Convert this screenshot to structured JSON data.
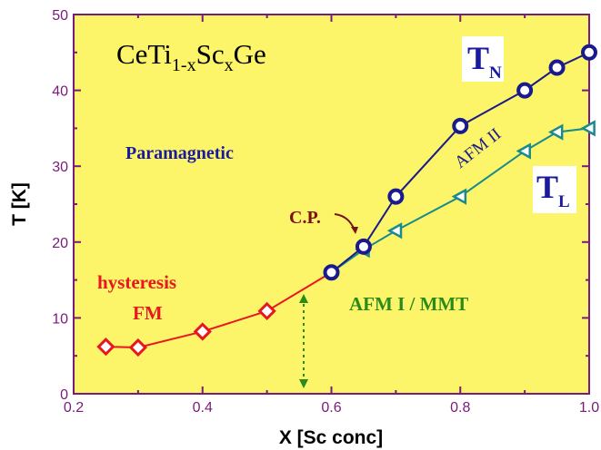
{
  "chart_data": {
    "type": "scatter",
    "title": "",
    "formula": {
      "base": "CeTi",
      "sub1": "1-x",
      "mid": "Sc",
      "sub2": "x",
      "end": "Ge"
    },
    "xlabel": "X [Sc conc]",
    "ylabel": "T [K]",
    "xlim": [
      0.2,
      1.0
    ],
    "ylim": [
      0,
      50
    ],
    "xticks": [
      "0.2",
      "0.4",
      "0.6",
      "0.8",
      "1.0"
    ],
    "yticks": [
      "0",
      "10",
      "20",
      "30",
      "40",
      "50"
    ],
    "grid": false,
    "series": [
      {
        "name": "FM",
        "marker": "diamond",
        "color": "#e8161f",
        "x": [
          0.25,
          0.3,
          0.4,
          0.5
        ],
        "y": [
          6.2,
          6.1,
          8.2,
          10.9
        ]
      },
      {
        "name": "T_N",
        "marker": "circle",
        "color": "#1a1a8c",
        "x": [
          0.6,
          0.65,
          0.7,
          0.8,
          0.9,
          0.95,
          1.0
        ],
        "y": [
          16.0,
          19.4,
          26.0,
          35.3,
          40.0,
          43.0,
          45.0
        ]
      },
      {
        "name": "T_L",
        "marker": "triangle-left",
        "color": "#1a8a8a",
        "x": [
          0.65,
          0.7,
          0.8,
          0.9,
          0.95,
          1.0
        ],
        "y": [
          19.0,
          21.5,
          26.0,
          32.0,
          34.5,
          35.0
        ]
      }
    ],
    "annotations": {
      "paramagnetic": "Paramagnetic",
      "tn_base": "T",
      "tn_sub": "N",
      "tl_base": "T",
      "tl_sub": "L",
      "afm2": "AFM II",
      "afm1": "AFM I  /  MMT",
      "cp": "C.P.",
      "hysteresis": "hysteresis",
      "fm": "FM"
    },
    "colors": {
      "plot_background": "#fcf569",
      "axis": "#7a1a7a"
    }
  }
}
